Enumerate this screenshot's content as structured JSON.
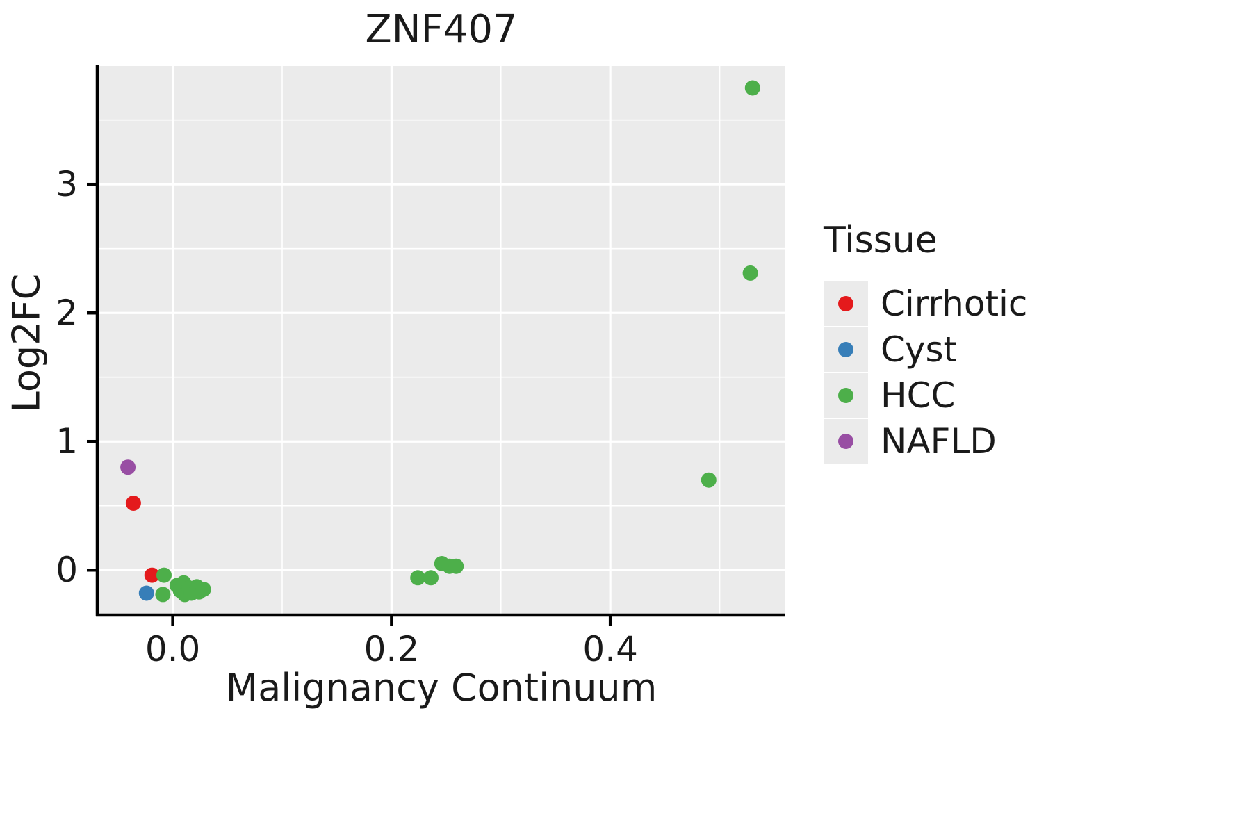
{
  "chart_data": {
    "type": "scatter",
    "title": "ZNF407",
    "xlabel": "Malignancy Continuum",
    "ylabel": "Log2FC",
    "xlim": [
      -0.069,
      0.56
    ],
    "ylim": [
      -0.35,
      3.92
    ],
    "x_ticks": [
      0.0,
      0.2,
      0.4
    ],
    "x_tick_labels": [
      "0.0",
      "0.2",
      "0.4"
    ],
    "x_minor_ticks": [
      0.1,
      0.3,
      0.5
    ],
    "y_ticks": [
      0,
      1,
      2,
      3
    ],
    "y_tick_labels": [
      "0",
      "1",
      "2",
      "3"
    ],
    "y_minor_ticks": [
      0.5,
      1.5,
      2.5,
      3.5
    ],
    "grid": true,
    "panel_background": "#ebebeb",
    "grid_color": "#ffffff",
    "axis_color": "#000000",
    "marker_radius": 11,
    "legend_title": "Tissue",
    "legend_position": "right",
    "series": [
      {
        "name": "Cirrhotic",
        "color": "#e41a1c",
        "points": [
          [
            -0.036,
            0.52
          ],
          [
            -0.019,
            -0.04
          ]
        ]
      },
      {
        "name": "Cyst",
        "color": "#377eb8",
        "points": [
          [
            -0.024,
            -0.18
          ]
        ]
      },
      {
        "name": "HCC",
        "color": "#4daf4a",
        "points": [
          [
            -0.008,
            -0.04
          ],
          [
            -0.009,
            -0.19
          ],
          [
            0.004,
            -0.12
          ],
          [
            0.007,
            -0.16
          ],
          [
            0.01,
            -0.1
          ],
          [
            0.011,
            -0.19
          ],
          [
            0.015,
            -0.14
          ],
          [
            0.017,
            -0.18
          ],
          [
            0.022,
            -0.13
          ],
          [
            0.024,
            -0.17
          ],
          [
            0.028,
            -0.15
          ],
          [
            0.224,
            -0.06
          ],
          [
            0.236,
            -0.06
          ],
          [
            0.246,
            0.05
          ],
          [
            0.253,
            0.03
          ],
          [
            0.259,
            0.03
          ],
          [
            0.49,
            0.7
          ],
          [
            0.528,
            2.31
          ],
          [
            0.53,
            3.75
          ]
        ]
      },
      {
        "name": "NAFLD",
        "color": "#984ea3",
        "points": [
          [
            -0.041,
            0.8
          ]
        ]
      }
    ]
  }
}
